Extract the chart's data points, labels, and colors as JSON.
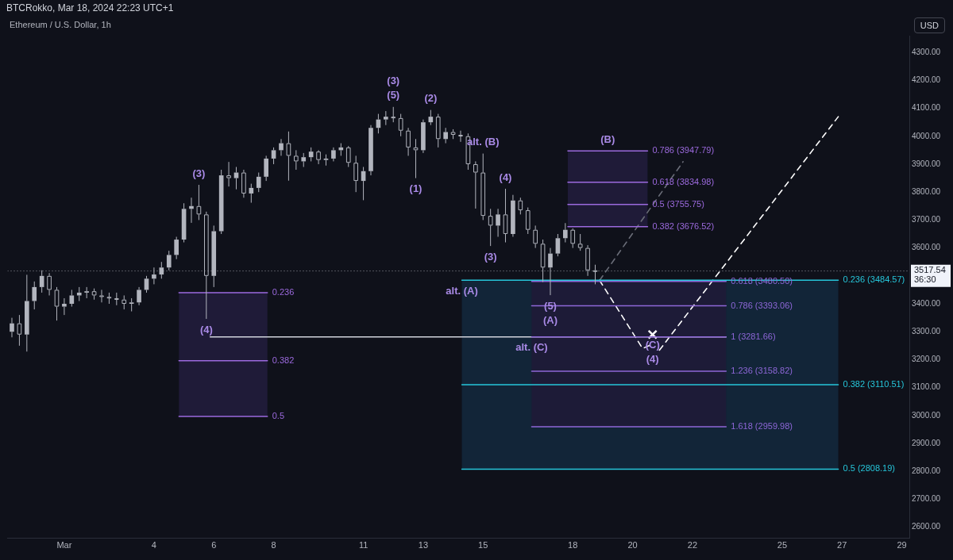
{
  "chart_data": {
    "type": "candlestick",
    "title": "Ethereum / U.S. Dollar, 1h",
    "subtitle": "BTCRokko, Mar 18, 2024 22:23 UTC+1",
    "ylabel": "USD",
    "color": "#b2b5be",
    "grid": false,
    "legend": false,
    "xlim": [
      "2024-02-28T02:30",
      "2024-03-29T06:00"
    ],
    "xticks": [
      {
        "value": "2024-03-01",
        "label": "Mar"
      },
      {
        "value": "2024-03-04",
        "label": "4"
      },
      {
        "value": "2024-03-06",
        "label": "6"
      },
      {
        "value": "2024-03-08",
        "label": "8"
      },
      {
        "value": "2024-03-11",
        "label": "11"
      },
      {
        "value": "2024-03-13",
        "label": "13"
      },
      {
        "value": "2024-03-15",
        "label": "15"
      },
      {
        "value": "2024-03-18",
        "label": "18"
      },
      {
        "value": "2024-03-20",
        "label": "20"
      },
      {
        "value": "2024-03-22",
        "label": "22"
      },
      {
        "value": "2024-03-25",
        "label": "25"
      },
      {
        "value": "2024-03-27",
        "label": "27"
      },
      {
        "value": "2024-03-29",
        "label": "29"
      }
    ],
    "ylim": [
      2560,
      4360
    ],
    "yticks": [
      {
        "value": 2600,
        "label": "2600.00"
      },
      {
        "value": 2700,
        "label": "2700.00"
      },
      {
        "value": 2800,
        "label": "2800.00"
      },
      {
        "value": 2900,
        "label": "2900.00"
      },
      {
        "value": 3000,
        "label": "3000.00"
      },
      {
        "value": 3100,
        "label": "3100.00"
      },
      {
        "value": 3200,
        "label": "3200.00"
      },
      {
        "value": 3300,
        "label": "3300.00"
      },
      {
        "value": 3400,
        "label": "3400.00"
      },
      {
        "value": 3600,
        "label": "3600.00"
      },
      {
        "value": 3700,
        "label": "3700.00"
      },
      {
        "value": 3800,
        "label": "3800.00"
      },
      {
        "value": 3900,
        "label": "3900.00"
      },
      {
        "value": 4000,
        "label": "4000.00"
      },
      {
        "value": 4100,
        "label": "4100.00"
      },
      {
        "value": 4200,
        "label": "4200.00"
      },
      {
        "value": 4300,
        "label": "4300.00"
      }
    ],
    "x": [
      "2024-02-28T06:00",
      "2024-02-28T12:00",
      "2024-02-28T18:00",
      "2024-02-29T00:00",
      "2024-02-29T06:00",
      "2024-02-29T12:00",
      "2024-02-29T18:00",
      "2024-03-01T00:00",
      "2024-03-01T06:00",
      "2024-03-01T12:00",
      "2024-03-01T18:00",
      "2024-03-02T00:00",
      "2024-03-02T06:00",
      "2024-03-02T12:00",
      "2024-03-02T18:00",
      "2024-03-03T00:00",
      "2024-03-03T06:00",
      "2024-03-03T12:00",
      "2024-03-03T18:00",
      "2024-03-04T00:00",
      "2024-03-04T06:00",
      "2024-03-04T12:00",
      "2024-03-04T18:00",
      "2024-03-05T00:00",
      "2024-03-05T06:00",
      "2024-03-05T12:00",
      "2024-03-05T18:00",
      "2024-03-06T00:00",
      "2024-03-06T06:00",
      "2024-03-06T12:00",
      "2024-03-06T18:00",
      "2024-03-07T00:00",
      "2024-03-07T06:00",
      "2024-03-07T12:00",
      "2024-03-07T18:00",
      "2024-03-08T00:00",
      "2024-03-08T06:00",
      "2024-03-08T12:00",
      "2024-03-08T18:00",
      "2024-03-09T00:00",
      "2024-03-09T06:00",
      "2024-03-09T12:00",
      "2024-03-09T18:00",
      "2024-03-10T00:00",
      "2024-03-10T06:00",
      "2024-03-10T12:00",
      "2024-03-10T18:00",
      "2024-03-11T00:00",
      "2024-03-11T06:00",
      "2024-03-11T12:00",
      "2024-03-11T18:00",
      "2024-03-12T00:00",
      "2024-03-12T06:00",
      "2024-03-12T12:00",
      "2024-03-12T18:00",
      "2024-03-13T00:00",
      "2024-03-13T06:00",
      "2024-03-13T12:00",
      "2024-03-13T18:00",
      "2024-03-14T00:00",
      "2024-03-14T06:00",
      "2024-03-14T12:00",
      "2024-03-14T18:00",
      "2024-03-15T00:00",
      "2024-03-15T06:00",
      "2024-03-15T12:00",
      "2024-03-15T18:00",
      "2024-03-16T00:00",
      "2024-03-16T06:00",
      "2024-03-16T12:00",
      "2024-03-16T18:00",
      "2024-03-17T00:00",
      "2024-03-17T06:00",
      "2024-03-17T12:00",
      "2024-03-17T18:00",
      "2024-03-18T00:00",
      "2024-03-18T06:00",
      "2024-03-18T12:00",
      "2024-03-18T18:00"
    ],
    "ohlc": [
      [
        3300,
        3350,
        3280,
        3330
      ],
      [
        3330,
        3360,
        3250,
        3290
      ],
      [
        3290,
        3504,
        3229,
        3410
      ],
      [
        3410,
        3480,
        3380,
        3460
      ],
      [
        3460,
        3520,
        3440,
        3500
      ],
      [
        3500,
        3510,
        3430,
        3450
      ],
      [
        3450,
        3460,
        3340,
        3390
      ],
      [
        3390,
        3420,
        3360,
        3400
      ],
      [
        3400,
        3450,
        3390,
        3430
      ],
      [
        3430,
        3460,
        3410,
        3440
      ],
      [
        3440,
        3460,
        3420,
        3445
      ],
      [
        3445,
        3455,
        3415,
        3430
      ],
      [
        3430,
        3450,
        3405,
        3425
      ],
      [
        3425,
        3440,
        3400,
        3420
      ],
      [
        3420,
        3440,
        3395,
        3415
      ],
      [
        3415,
        3430,
        3380,
        3400
      ],
      [
        3400,
        3420,
        3373,
        3405
      ],
      [
        3405,
        3460,
        3395,
        3450
      ],
      [
        3450,
        3500,
        3440,
        3490
      ],
      [
        3490,
        3530,
        3470,
        3505
      ],
      [
        3505,
        3550,
        3490,
        3530
      ],
      [
        3530,
        3590,
        3520,
        3575
      ],
      [
        3575,
        3640,
        3560,
        3630
      ],
      [
        3630,
        3760,
        3620,
        3740
      ],
      [
        3740,
        3780,
        3690,
        3750
      ],
      [
        3750,
        3826,
        3700,
        3720
      ],
      [
        3720,
        3730,
        3346,
        3500
      ],
      [
        3500,
        3680,
        3460,
        3660
      ],
      [
        3660,
        3880,
        3650,
        3860
      ],
      [
        3860,
        3908,
        3820,
        3850
      ],
      [
        3850,
        3890,
        3810,
        3870
      ],
      [
        3870,
        3880,
        3780,
        3795
      ],
      [
        3795,
        3830,
        3762,
        3815
      ],
      [
        3815,
        3870,
        3800,
        3855
      ],
      [
        3855,
        3930,
        3840,
        3920
      ],
      [
        3920,
        3960,
        3900,
        3950
      ],
      [
        3950,
        3990,
        3930,
        3975
      ],
      [
        3975,
        4017,
        3841,
        3930
      ],
      [
        3930,
        3950,
        3880,
        3910
      ],
      [
        3910,
        3940,
        3890,
        3925
      ],
      [
        3925,
        3960,
        3910,
        3945
      ],
      [
        3945,
        3950,
        3900,
        3915
      ],
      [
        3915,
        3935,
        3895,
        3920
      ],
      [
        3920,
        3960,
        3910,
        3950
      ],
      [
        3950,
        3975,
        3930,
        3960
      ],
      [
        3960,
        3965,
        3890,
        3905
      ],
      [
        3905,
        3930,
        3800,
        3840
      ],
      [
        3840,
        3890,
        3771,
        3875
      ],
      [
        3875,
        4040,
        3860,
        4030
      ],
      [
        4030,
        4080,
        4010,
        4060
      ],
      [
        4060,
        4090,
        4040,
        4070
      ],
      [
        4070,
        4105,
        4050,
        4065
      ],
      [
        4065,
        4080,
        4000,
        4020
      ],
      [
        4020,
        4030,
        3930,
        3960
      ],
      [
        3960,
        3990,
        3850,
        3950
      ],
      [
        3950,
        4060,
        3940,
        4050
      ],
      [
        4050,
        4094,
        4040,
        4070
      ],
      [
        4070,
        4080,
        3960,
        3990
      ],
      [
        3990,
        4030,
        3975,
        4015
      ],
      [
        4015,
        4025,
        3990,
        4005
      ],
      [
        4005,
        4020,
        3980,
        4000
      ],
      [
        4000,
        4010,
        3880,
        3900
      ],
      [
        3900,
        3910,
        3741,
        3870
      ],
      [
        3870,
        3938,
        3700,
        3715
      ],
      [
        3715,
        3740,
        3607,
        3680
      ],
      [
        3680,
        3740,
        3640,
        3720
      ],
      [
        3720,
        3812,
        3620,
        3650
      ],
      [
        3650,
        3790,
        3640,
        3770
      ],
      [
        3770,
        3780,
        3720,
        3735
      ],
      [
        3735,
        3745,
        3650,
        3665
      ],
      [
        3665,
        3680,
        3600,
        3615
      ],
      [
        3615,
        3630,
        3478,
        3530
      ],
      [
        3530,
        3600,
        3431,
        3580
      ],
      [
        3580,
        3650,
        3570,
        3635
      ],
      [
        3635,
        3689,
        3620,
        3665
      ],
      [
        3665,
        3670,
        3600,
        3615
      ],
      [
        3615,
        3650,
        3590,
        3600
      ],
      [
        3600,
        3610,
        3500,
        3520
      ],
      [
        3520,
        3540,
        3470,
        3517.54
      ]
    ],
    "series": [
      {
        "type": "line",
        "name": "0.236",
        "color": "#9c6ade",
        "x": [
          "2024-03-04T20:00",
          "2024-03-07T19:00"
        ],
        "values": [
          3440,
          3440
        ],
        "lower": [
          2997,
          2997
        ],
        "upper": [
          3440,
          3440
        ]
      },
      {
        "type": "line",
        "name": "0.382",
        "color": "#9c6ade",
        "x": [
          "2024-03-04T20:00",
          "2024-03-07T19:00"
        ],
        "values": [
          3196,
          3196
        ]
      },
      {
        "type": "line",
        "name": "0.5",
        "color": "#9c6ade",
        "x": [
          "2024-03-04T20:00",
          "2024-03-07T19:00"
        ],
        "values": [
          2997,
          2997
        ]
      },
      {
        "type": "line",
        "name": "0.236 (3484.57)",
        "color": "#26c6da",
        "x": [
          "2024-03-14T07:00",
          "2024-03-26T21:00"
        ],
        "values": [
          3484.57,
          3484.57
        ],
        "lower": [
          2808.19,
          2808.19
        ],
        "upper": [
          3484.57,
          3484.57
        ]
      },
      {
        "type": "line",
        "name": "0.382 (3110.51)",
        "color": "#26c6da",
        "x": [
          "2024-03-14T07:00",
          "2024-03-26T21:00"
        ],
        "values": [
          3110.51,
          3110.51
        ]
      },
      {
        "type": "line",
        "name": "0.5 (2808.19)",
        "color": "#26c6da",
        "x": [
          "2024-03-14T07:00",
          "2024-03-26T21:00"
        ],
        "values": [
          2808.19,
          2808.19
        ]
      },
      {
        "type": "line",
        "name": "0.618 (3480.50)",
        "color": "#8e67d8",
        "x": [
          "2024-03-16T15:00",
          "2024-03-23T03:00"
        ],
        "values": [
          3480.5,
          3480.5
        ],
        "lower": [
          2959.98,
          2959.98
        ],
        "upper": [
          3480.5,
          3480.5
        ]
      },
      {
        "type": "line",
        "name": "0.786 (3393.06)",
        "color": "#8e67d8",
        "x": [
          "2024-03-16T15:00",
          "2024-03-23T03:00"
        ],
        "values": [
          3393.06,
          3393.06
        ]
      },
      {
        "type": "line",
        "name": "1 (3281.66)",
        "color": "#8e67d8",
        "x": [
          "2024-03-16T15:00",
          "2024-03-23T03:00"
        ],
        "values": [
          3281.66,
          3281.66
        ]
      },
      {
        "type": "line",
        "name": "1.236 (3158.82)",
        "color": "#8e67d8",
        "x": [
          "2024-03-16T15:00",
          "2024-03-23T03:00"
        ],
        "values": [
          3158.82,
          3158.82
        ]
      },
      {
        "type": "line",
        "name": "1.618 (2959.98)",
        "color": "#8e67d8",
        "x": [
          "2024-03-16T15:00",
          "2024-03-23T03:00"
        ],
        "values": [
          2959.98,
          2959.98
        ]
      },
      {
        "type": "line",
        "name": "0.786 (3947.79)",
        "color": "#9c6ade",
        "x": [
          "2024-03-17T20:00",
          "2024-03-19T04:00",
          "2024-03-20T12:00"
        ],
        "values": [
          3947.79,
          3947.79,
          3947.79
        ],
        "lower": [
          3676.52,
          3676.52,
          3676.52
        ],
        "upper": [
          3947.79,
          3947.79,
          3947.79
        ]
      },
      {
        "type": "line",
        "name": "0.618 (3834.98)",
        "color": "#9c6ade",
        "x": [
          "2024-03-17T20:00",
          "2024-03-20T12:00"
        ],
        "values": [
          3834.98,
          3834.98
        ]
      },
      {
        "type": "line",
        "name": "0.5 (3755.75)",
        "color": "#9c6ade",
        "x": [
          "2024-03-17T20:00",
          "2024-03-20T12:00"
        ],
        "values": [
          3755.75,
          3755.75
        ]
      },
      {
        "type": "line",
        "name": "0.382 (3676.52)",
        "color": "#9c6ade",
        "x": [
          "2024-03-17T20:00",
          "2024-03-20T12:00"
        ],
        "values": [
          3676.52,
          3676.52
        ]
      },
      {
        "type": "line",
        "color": "#d1d4dc",
        "x": [
          "2024-03-05T21:00",
          "2024-03-23T03:00"
        ],
        "values": [
          3281.66,
          3281.66
        ]
      },
      {
        "type": "line",
        "color": "#ffffff",
        "line_style": "dashed",
        "x": [
          "2024-03-18T21:30",
          "2024-03-20T08:00",
          "2024-03-20T14:00"
        ],
        "values": [
          3484,
          3240,
          3252
        ]
      },
      {
        "type": "line",
        "color": "#ffffff",
        "line_style": "dashed",
        "x": [
          "2024-03-20T21:30",
          "2024-03-26T21:00"
        ],
        "values": [
          3234,
          4070
        ]
      },
      {
        "type": "line",
        "color": "#6a6d78",
        "line_style": "dashed",
        "x": [
          "2024-03-18T21:30",
          "2024-03-21T16:30"
        ],
        "values": [
          3484,
          3909
        ]
      },
      {
        "type": "scatter",
        "color": "#ffffff",
        "marker": "cross",
        "x": [
          "2024-03-20T16:00"
        ],
        "values": [
          3290
        ]
      }
    ],
    "ref_lines": [
      {
        "axis": "y",
        "value": 3517.54,
        "label": "3517.54\n36:30",
        "color": "#9598a1",
        "line_style": "dotted"
      }
    ],
    "annotations": [
      {
        "text": "(5)",
        "x": "2024-03-12T00:00",
        "y": 4105
      },
      {
        "text": "(3)",
        "x": "2024-03-12T00:00",
        "y": 4105
      },
      {
        "text": "(3)",
        "x": "2024-03-05T12:00",
        "y": 3826
      },
      {
        "text": "(4)",
        "x": "2024-03-05T18:00",
        "y": 3346
      },
      {
        "text": "(2)",
        "x": "2024-03-13T06:00",
        "y": 4094
      },
      {
        "text": "(1)",
        "x": "2024-03-12T18:00",
        "y": 3850
      },
      {
        "text": "(4)",
        "x": "2024-03-15T18:00",
        "y": 3812
      },
      {
        "text": "(3)",
        "x": "2024-03-15T06:00",
        "y": 3607
      },
      {
        "text": "(5)",
        "x": "2024-03-17T06:00",
        "y": 3431
      },
      {
        "text": "(A)",
        "x": "2024-03-17T06:00",
        "y": 3431
      },
      {
        "text": "alt. (B)",
        "x": "2024-03-15T00:00",
        "y": 3938
      },
      {
        "text": "alt. (A)",
        "x": "2024-03-14T07:00",
        "y": 3484.57
      },
      {
        "text": "alt. (C)",
        "x": "2024-03-16T15:00",
        "y": 3281.66
      },
      {
        "text": "(B)",
        "x": "2024-03-19T04:00",
        "y": 3947.79
      },
      {
        "text": "(C)",
        "x": "2024-03-20T16:00",
        "y": 3290
      },
      {
        "text": "(4)",
        "x": "2024-03-20T16:00",
        "y": 3290
      }
    ]
  }
}
